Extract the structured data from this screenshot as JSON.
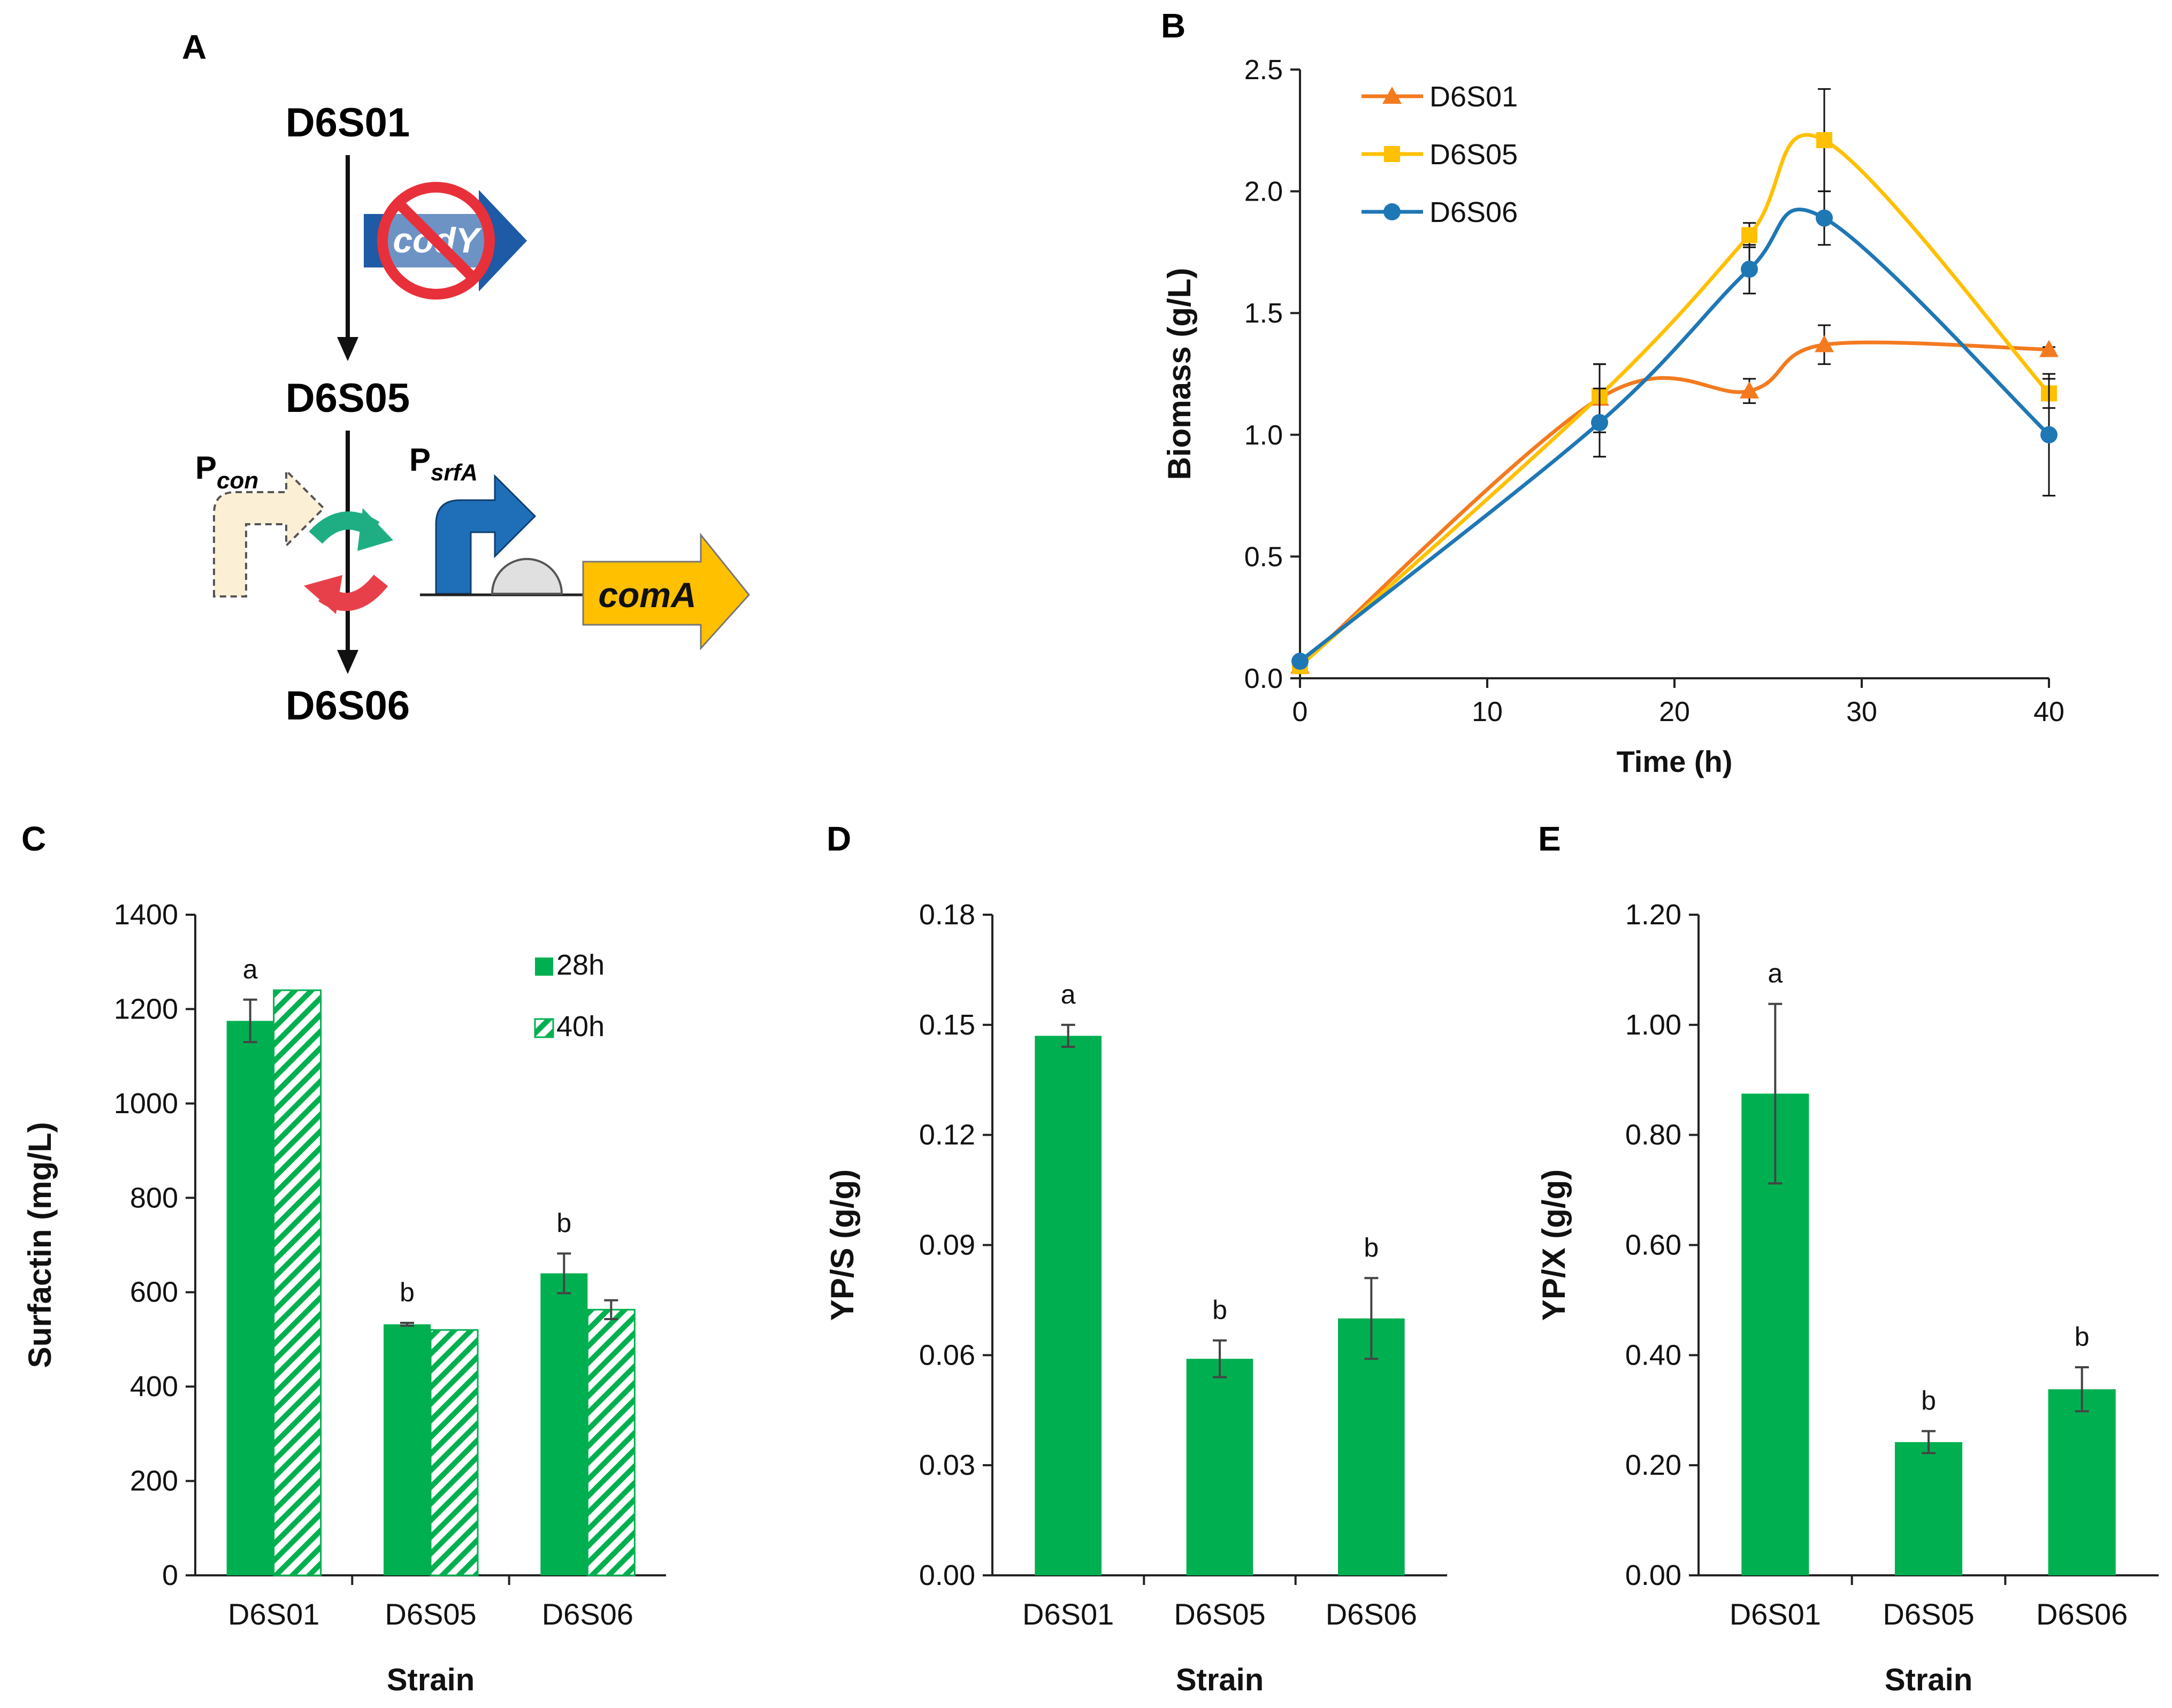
{
  "panels": {
    "A": {
      "letter": "A",
      "strain_top": "D6S01",
      "strain_mid": "D6S05",
      "strain_bottom": "D6S06",
      "gene_deleted": "codY",
      "gene_expressed": "comA",
      "promoter_con_main": "P",
      "promoter_con_sub": "con",
      "promoter_srfa_main": "P",
      "promoter_srfa_sub": "srfA",
      "colors": {
        "cody_arrow": "#1f5aa6",
        "no_symbol": "#e8303a",
        "pcon_fill": "#fbefd5",
        "psrfa_arrow": "#1f6fb8",
        "coma_arrow": "#ffc000",
        "cycle_green": "#1fae84",
        "cycle_red": "#e8404a",
        "rbs": "#e0e0e0"
      }
    }
  },
  "chart_data": [
    {
      "panel": "B",
      "type": "line",
      "x": [
        0,
        16,
        24,
        28,
        40
      ],
      "series": [
        {
          "name": "D6S01",
          "values": [
            0.05,
            1.15,
            1.18,
            1.37,
            1.35
          ],
          "errors": [
            0.01,
            0.14,
            0.05,
            0.08,
            0.01
          ],
          "color": "#f47a20",
          "marker": "triangle"
        },
        {
          "name": "D6S05",
          "values": [
            0.05,
            1.16,
            1.82,
            2.21,
            1.17
          ],
          "errors": [
            0.01,
            0.13,
            0.05,
            0.21,
            0.06
          ],
          "color": "#ffc000",
          "marker": "square"
        },
        {
          "name": "D6S06",
          "values": [
            0.07,
            1.05,
            1.68,
            1.89,
            1.0
          ],
          "errors": [
            0.01,
            0.14,
            0.1,
            0.11,
            0.25
          ],
          "color": "#1f77b4",
          "marker": "circle"
        }
      ],
      "xlabel": "Time (h)",
      "ylabel": "Biomass (g/L)",
      "xlim": [
        0,
        40
      ],
      "ylim": [
        0,
        2.5
      ],
      "xticks": [
        0,
        10,
        20,
        30,
        40
      ],
      "yticks": [
        "0.0",
        "0.5",
        "1.0",
        "1.5",
        "2.0",
        "2.5"
      ],
      "legend_position": "top-left",
      "grid": false
    },
    {
      "panel": "C",
      "type": "bar",
      "categories": [
        "D6S01",
        "D6S05",
        "D6S06"
      ],
      "series": [
        {
          "name": "28h",
          "values": [
            1175,
            532,
            640
          ],
          "errors": [
            45,
            3,
            42
          ],
          "pattern": "solid"
        },
        {
          "name": "40h",
          "values": [
            1240,
            520,
            563
          ],
          "errors": [
            0,
            0,
            20
          ],
          "pattern": "hatched"
        }
      ],
      "annotations": [
        "a",
        "b",
        "b"
      ],
      "xlabel": "Strain",
      "ylabel": "Surfactin (mg/L)",
      "ylim": [
        0,
        1400
      ],
      "yticks": [
        "0",
        "200",
        "400",
        "600",
        "800",
        "1000",
        "1200",
        "1400"
      ],
      "legend_position": "top-right",
      "color": "#00b050"
    },
    {
      "panel": "D",
      "type": "bar",
      "categories": [
        "D6S01",
        "D6S05",
        "D6S06"
      ],
      "values": [
        0.147,
        0.059,
        0.07
      ],
      "errors": [
        0.003,
        0.005,
        0.011
      ],
      "annotations": [
        "a",
        "b",
        "b"
      ],
      "xlabel": "Strain",
      "ylabel": "YP/S (g/g)",
      "ylim": [
        0,
        0.18
      ],
      "yticks": [
        "0.00",
        "0.03",
        "0.06",
        "0.09",
        "0.12",
        "0.15",
        "0.18"
      ],
      "color": "#00b050"
    },
    {
      "panel": "E",
      "type": "bar",
      "categories": [
        "D6S01",
        "D6S05",
        "D6S06"
      ],
      "values": [
        0.875,
        0.242,
        0.338
      ],
      "errors": [
        0.163,
        0.02,
        0.04
      ],
      "annotations": [
        "a",
        "b",
        "b"
      ],
      "xlabel": "Strain",
      "ylabel": "YP/X (g/g)",
      "ylim": [
        0,
        1.2
      ],
      "yticks": [
        "0.00",
        "0.20",
        "0.40",
        "0.60",
        "0.80",
        "1.00",
        "1.20"
      ],
      "color": "#00b050"
    }
  ]
}
